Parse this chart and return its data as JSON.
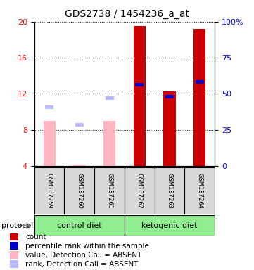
{
  "title": "GDS2738 / 1454236_a_at",
  "samples": [
    "GSM187259",
    "GSM187260",
    "GSM187261",
    "GSM187262",
    "GSM187263",
    "GSM187264"
  ],
  "ylim_left": [
    4,
    20
  ],
  "ylim_right": [
    0,
    100
  ],
  "yticks_left": [
    4,
    8,
    12,
    16,
    20
  ],
  "yticks_right": [
    0,
    25,
    50,
    75,
    100
  ],
  "bar_values": [
    9.0,
    4.2,
    9.0,
    19.5,
    12.3,
    19.2
  ],
  "bar_colors": [
    "#FFB6C1",
    "#FFB6C1",
    "#FFB6C1",
    "#CC0000",
    "#CC0000",
    "#CC0000"
  ],
  "rank_values": [
    10.5,
    8.6,
    11.5,
    13.0,
    11.7,
    13.3
  ],
  "rank_colors": [
    "#BBBBFF",
    "#BBBBFF",
    "#BBBBFF",
    "#0000CC",
    "#0000CC",
    "#0000CC"
  ],
  "absent_flags": [
    true,
    true,
    true,
    false,
    false,
    false
  ],
  "group_boundaries": [
    [
      0,
      3,
      "control diet"
    ],
    [
      3,
      6,
      "ketogenic diet"
    ]
  ],
  "legend_items": [
    {
      "color": "#CC0000",
      "label": "count"
    },
    {
      "color": "#0000CC",
      "label": "percentile rank within the sample"
    },
    {
      "color": "#FFB6C1",
      "label": "value, Detection Call = ABSENT"
    },
    {
      "color": "#BBBBFF",
      "label": "rank, Detection Call = ABSENT"
    }
  ],
  "bar_width": 0.4,
  "background_color": "#FFFFFF",
  "title_fontsize": 10,
  "tick_fontsize": 8,
  "sample_fontsize": 6,
  "group_fontsize": 8,
  "legend_fontsize": 7.5,
  "protocol_fontsize": 8
}
